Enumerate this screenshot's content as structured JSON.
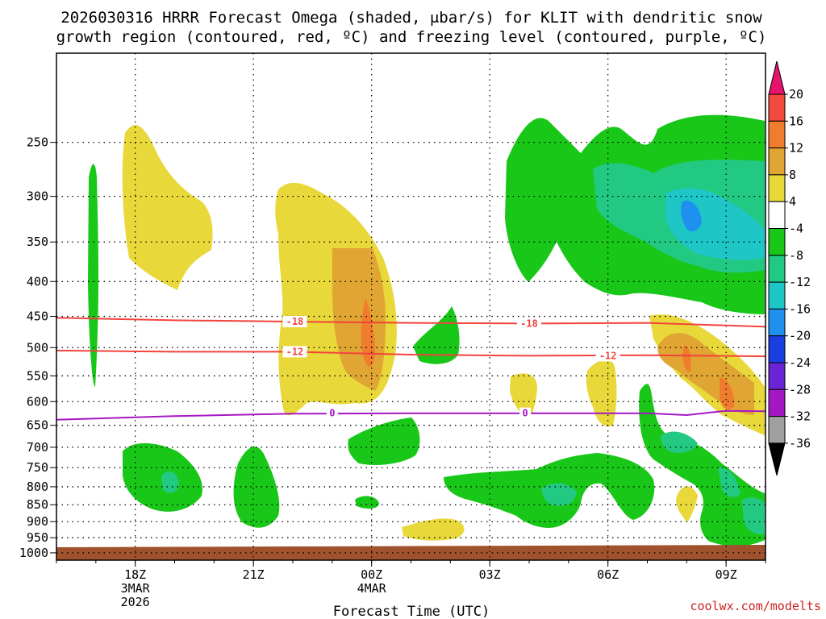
{
  "chart_data": {
    "type": "contour",
    "title_line1": "2026030316 HRRR Forecast Omega (shaded, μbar/s) for KLIT with dendritic snow",
    "title_line2": "growth region (contoured, red, ºC) and freezing level (contoured, purple, ºC)",
    "xlabel": "Forecast Time (UTC)",
    "credit": "coolwx.com/modelts",
    "x_hours": [
      0,
      3,
      6,
      9,
      12,
      15,
      18
    ],
    "x_tick_labels": [
      "18Z",
      "21Z",
      "00Z",
      "03Z",
      "06Z",
      "09Z"
    ],
    "x_tick_hours": [
      2,
      5,
      8,
      11,
      14,
      17
    ],
    "x_date_labels": [
      {
        "hour": 2,
        "lines": [
          "3MAR",
          "2026"
        ]
      },
      {
        "hour": 8,
        "lines": [
          "4MAR"
        ]
      }
    ],
    "x_range_hours": [
      0,
      18
    ],
    "pressure_levels": [
      "250",
      "300",
      "350",
      "400",
      "450",
      "500",
      "550",
      "600",
      "650",
      "700",
      "750",
      "800",
      "850",
      "900",
      "950",
      "1000"
    ],
    "pressure_range": [
      1025,
      185
    ],
    "colorbar": {
      "tick_labels": [
        "20",
        "16",
        "12",
        "8",
        "4",
        "-4",
        "-8",
        "-12",
        "-16",
        "-20",
        "-24",
        "-28",
        "-32",
        "-36"
      ],
      "colors": [
        "#e8136e",
        "#f24a3c",
        "#f07d2e",
        "#e0a533",
        "#e8d83a",
        "#ffffff",
        "#19c719",
        "#22c982",
        "#1ec6c6",
        "#1e90f0",
        "#1a3fe0",
        "#6a24d6",
        "#a617c4",
        "#a0a0a0",
        "#000000"
      ]
    },
    "series": [
      {
        "name": "-18",
        "color": "#f2433c",
        "points": [
          [
            0,
            452
          ],
          [
            3,
            456
          ],
          [
            6,
            458
          ],
          [
            9,
            460
          ],
          [
            12,
            461
          ],
          [
            15,
            460
          ],
          [
            18,
            466
          ]
        ]
      },
      {
        "name": "-12",
        "color": "#f2433c",
        "points": [
          [
            0,
            505
          ],
          [
            3,
            507
          ],
          [
            6,
            507
          ],
          [
            9,
            512
          ],
          [
            12,
            514
          ],
          [
            15,
            513
          ],
          [
            18,
            515
          ]
        ]
      },
      {
        "name": "0",
        "color": "#a617c4",
        "points": [
          [
            0,
            638
          ],
          [
            3,
            630
          ],
          [
            6,
            625
          ],
          [
            9,
            624
          ],
          [
            12,
            624
          ],
          [
            15,
            624
          ],
          [
            16,
            628
          ],
          [
            17,
            619
          ],
          [
            18,
            620
          ]
        ]
      }
    ],
    "contour_labels": [
      {
        "text": "-18",
        "hour": 6.05,
        "p": 458
      },
      {
        "text": "-18",
        "hour": 12.0,
        "p": 461
      },
      {
        "text": "-12",
        "hour": 6.05,
        "p": 507
      },
      {
        "text": "-12",
        "hour": 14.0,
        "p": 514
      },
      {
        "text": "0",
        "hour": 7.0,
        "p": 624
      },
      {
        "text": "0",
        "hour": 11.9,
        "p": 624
      }
    ]
  }
}
